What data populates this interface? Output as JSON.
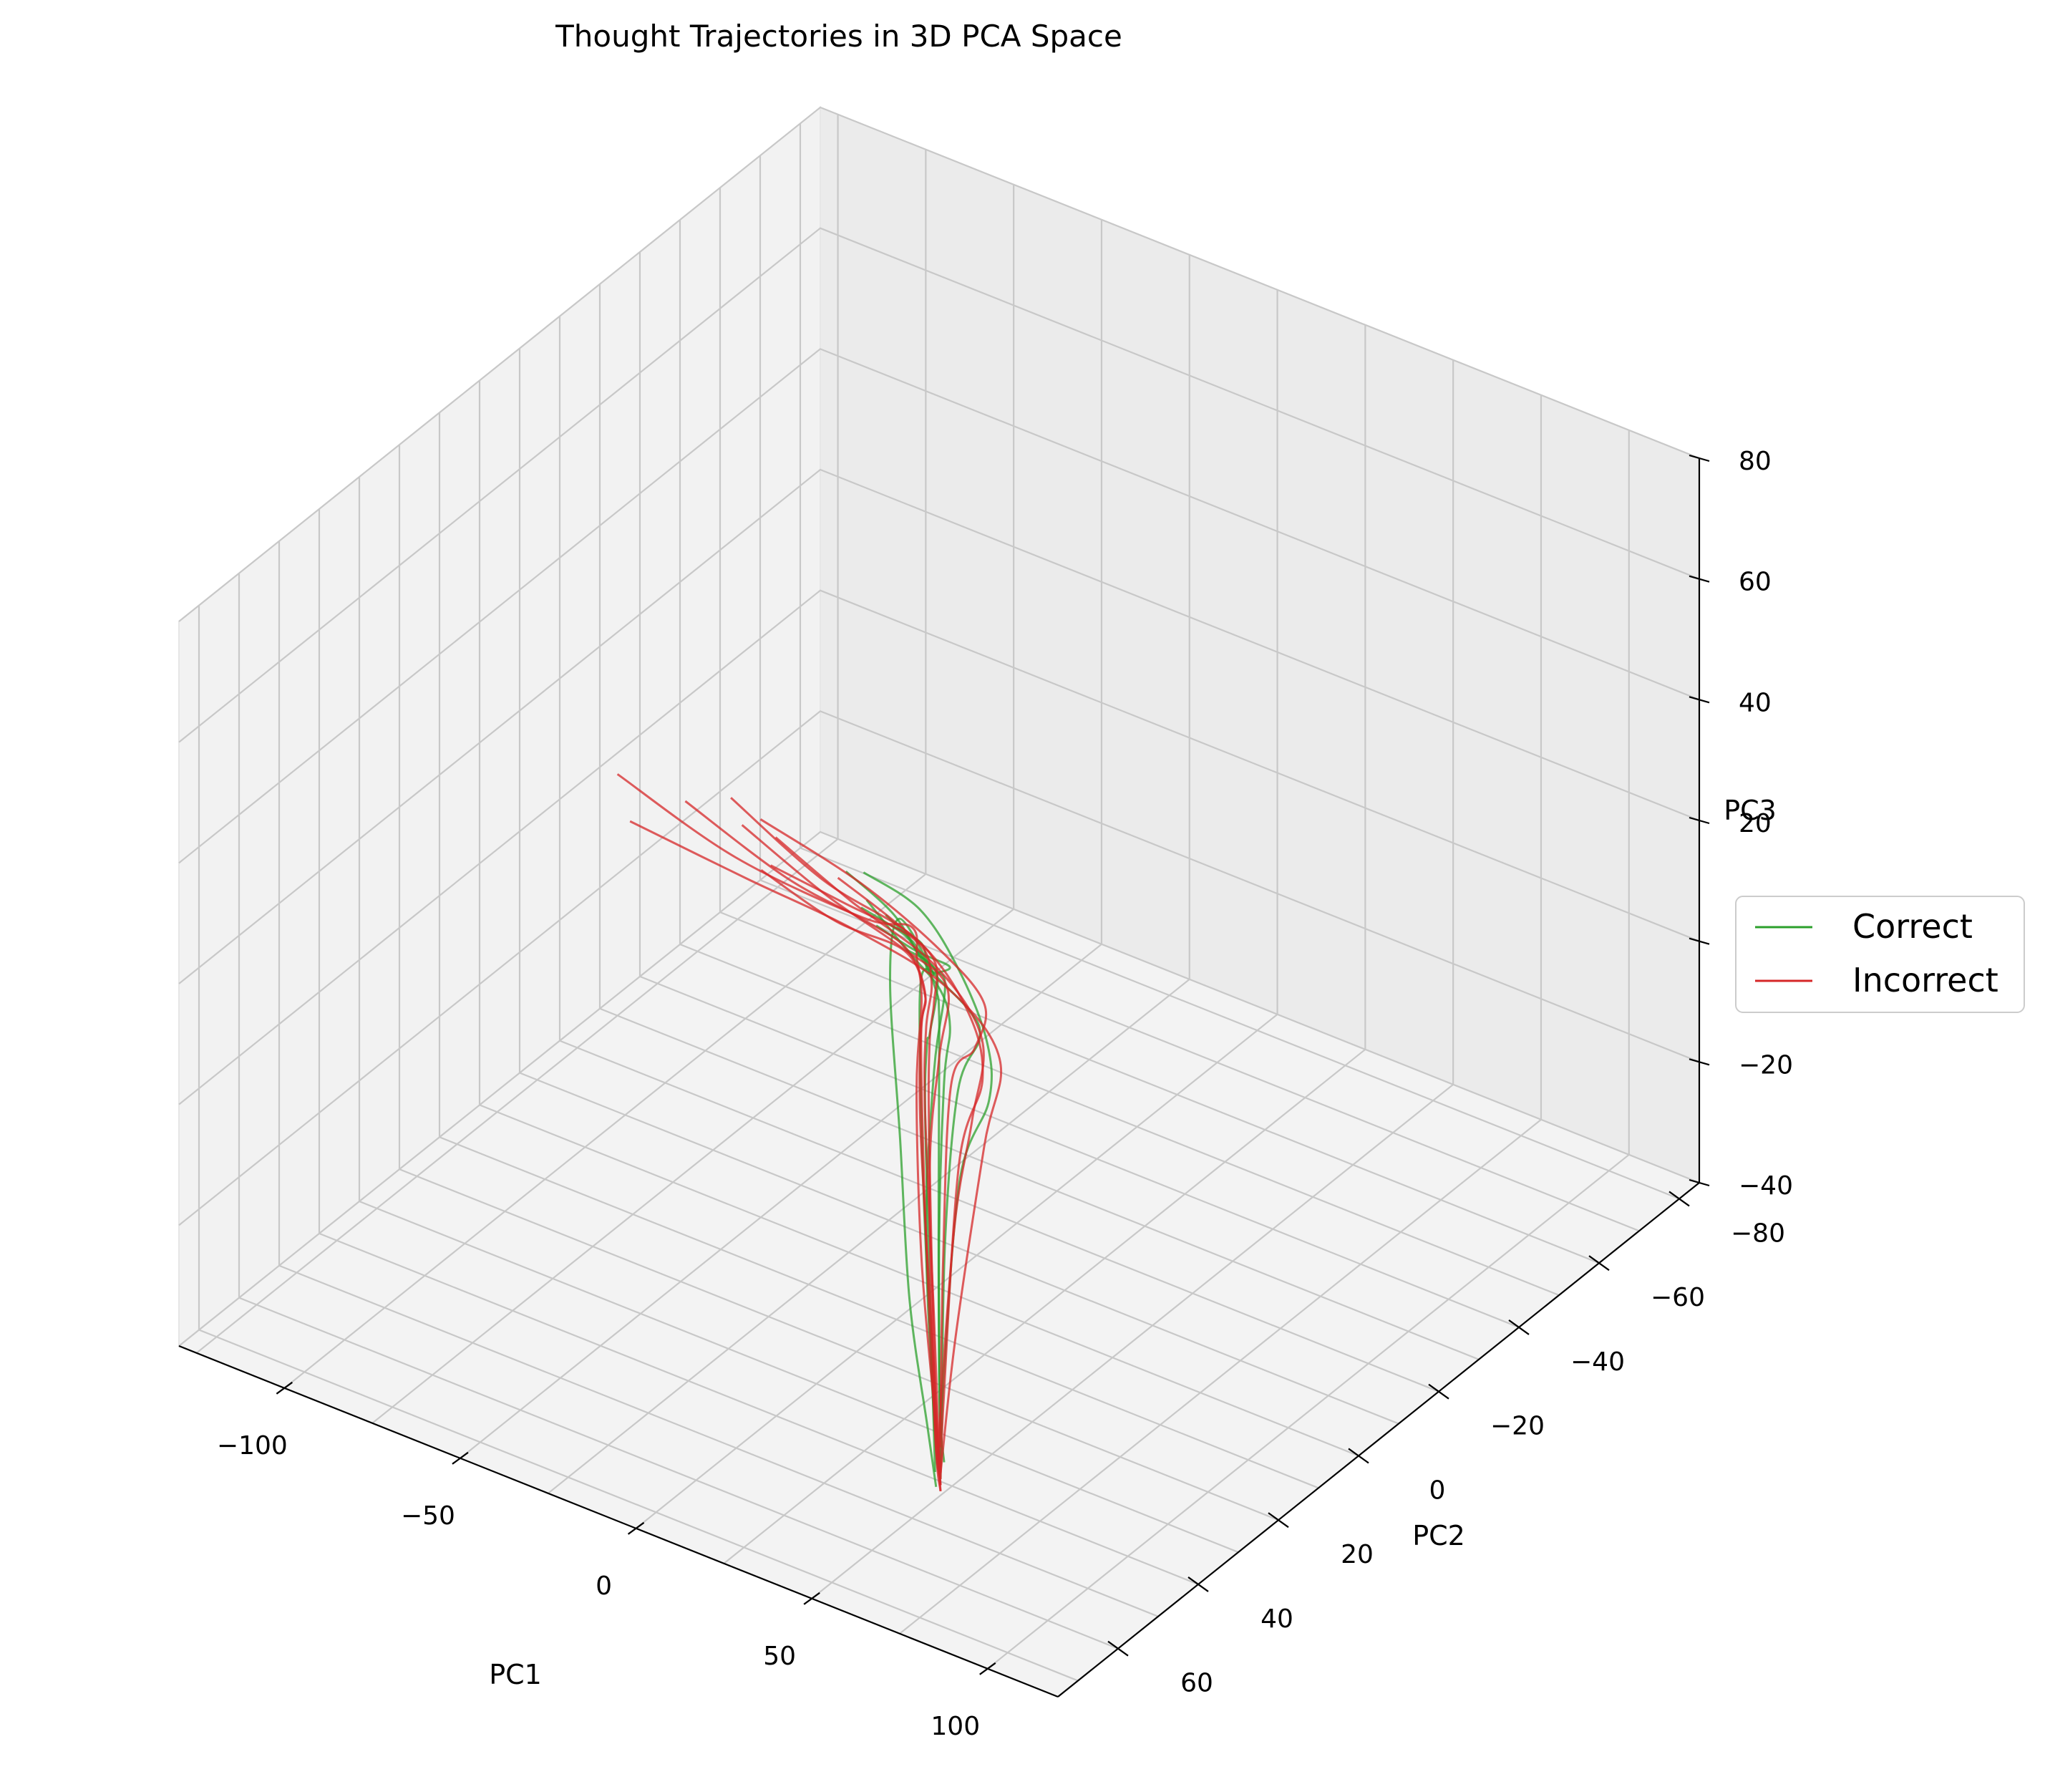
{
  "chart_data": {
    "type": "line",
    "title": "Thought Trajectories in 3D PCA Space",
    "xlabel": "PC1",
    "ylabel": "PC2",
    "zlabel": "PC3",
    "xlim": [
      -130,
      120
    ],
    "ylim": [
      -85,
      75
    ],
    "zlim": [
      -40,
      80
    ],
    "xticks": [
      "−100",
      "−50",
      "0",
      "50",
      "100"
    ],
    "yticks": [
      "−80",
      "−60",
      "−40",
      "−20",
      "0",
      "20",
      "40",
      "60"
    ],
    "zticks": [
      "−40",
      "−20",
      "0",
      "20",
      "40",
      "60",
      "80"
    ],
    "grid": true,
    "legend_position": "right",
    "series": [
      {
        "name": "Correct",
        "color": "#2ca02c",
        "trajectories": [
          [
            [
              -30,
              -15,
              5
            ],
            [
              -10,
              -5,
              12
            ],
            [
              20,
              20,
              28
            ],
            [
              50,
              45,
              48
            ],
            [
              60,
              62,
              68
            ],
            [
              62,
              66,
              60
            ],
            [
              58,
              60,
              30
            ],
            [
              55,
              55,
              0
            ],
            [
              52,
              48,
              -25
            ],
            [
              50,
              44,
              -38
            ]
          ],
          [
            [
              -40,
              -20,
              0
            ],
            [
              -15,
              -8,
              8
            ],
            [
              15,
              10,
              22
            ],
            [
              40,
              35,
              40
            ],
            [
              55,
              52,
              52
            ],
            [
              58,
              55,
              40
            ],
            [
              56,
              52,
              10
            ],
            [
              53,
              47,
              -22
            ],
            [
              51,
              44,
              -36
            ]
          ],
          [
            [
              -50,
              -25,
              -2
            ],
            [
              -30,
              -18,
              2
            ],
            [
              -5,
              0,
              14
            ],
            [
              25,
              22,
              30
            ],
            [
              48,
              40,
              42
            ],
            [
              54,
              48,
              34
            ],
            [
              54,
              50,
              8
            ],
            [
              52,
              46,
              -28
            ],
            [
              50,
              43,
              -37
            ]
          ],
          [
            [
              -35,
              -18,
              4
            ],
            [
              -12,
              -6,
              10
            ],
            [
              18,
              16,
              22
            ],
            [
              44,
              38,
              36
            ],
            [
              52,
              45,
              30
            ],
            [
              53,
              46,
              5
            ],
            [
              51,
              44,
              -24
            ],
            [
              50,
              42,
              -35
            ]
          ],
          [
            [
              -45,
              -22,
              2
            ],
            [
              -20,
              -10,
              6
            ],
            [
              10,
              8,
              16
            ],
            [
              38,
              30,
              28
            ],
            [
              50,
              42,
              28
            ],
            [
              52,
              45,
              4
            ],
            [
              50,
              43,
              -30
            ],
            [
              49,
              42,
              -38
            ]
          ],
          [
            [
              -60,
              -30,
              -1
            ],
            [
              -35,
              -20,
              3
            ],
            [
              -10,
              -6,
              8
            ],
            [
              15,
              5,
              12
            ],
            [
              35,
              20,
              20
            ],
            [
              46,
              35,
              22
            ],
            [
              48,
              40,
              0
            ],
            [
              47,
              40,
              -32
            ]
          ],
          [
            [
              -20,
              -10,
              6
            ],
            [
              0,
              0,
              12
            ],
            [
              30,
              28,
              24
            ],
            [
              52,
              48,
              38
            ],
            [
              56,
              52,
              30
            ],
            [
              55,
              50,
              0
            ],
            [
              52,
              46,
              -34
            ]
          ],
          [
            [
              -55,
              -30,
              0
            ],
            [
              -30,
              -22,
              4
            ],
            [
              -5,
              -10,
              6
            ],
            [
              20,
              5,
              8
            ],
            [
              40,
              22,
              12
            ],
            [
              50,
              38,
              10
            ],
            [
              50,
              42,
              -20
            ],
            [
              49,
              42,
              -36
            ]
          ]
        ]
      },
      {
        "name": "Incorrect",
        "color": "#d62728",
        "trajectories": [
          [
            [
              -125,
              -30,
              0
            ],
            [
              -80,
              -20,
              2
            ],
            [
              -30,
              -8,
              10
            ],
            [
              10,
              15,
              30
            ],
            [
              40,
              40,
              45
            ],
            [
              55,
              52,
              48
            ],
            [
              57,
              55,
              35
            ],
            [
              55,
              52,
              5
            ],
            [
              52,
              46,
              -25
            ],
            [
              49,
              42,
              -40
            ]
          ],
          [
            [
              -100,
              -25,
              4
            ],
            [
              -60,
              -15,
              6
            ],
            [
              -20,
              0,
              16
            ],
            [
              20,
              25,
              34
            ],
            [
              48,
              45,
              44
            ],
            [
              56,
              53,
              42
            ],
            [
              55,
              51,
              10
            ],
            [
              51,
              45,
              -30
            ],
            [
              49,
              42,
              -40
            ]
          ],
          [
            [
              -90,
              -35,
              -2
            ],
            [
              -50,
              -25,
              2
            ],
            [
              -10,
              -10,
              8
            ],
            [
              25,
              10,
              18
            ],
            [
              45,
              30,
              26
            ],
            [
              52,
              42,
              28
            ],
            [
              52,
              44,
              0
            ],
            [
              50,
              43,
              -32
            ]
          ],
          [
            [
              -70,
              -20,
              3
            ],
            [
              -40,
              -12,
              8
            ],
            [
              0,
              5,
              20
            ],
            [
              35,
              32,
              36
            ],
            [
              54,
              50,
              42
            ],
            [
              56,
              52,
              30
            ],
            [
              53,
              47,
              -10
            ],
            [
              50,
              43,
              -38
            ]
          ],
          [
            [
              -80,
              -30,
              0
            ],
            [
              -45,
              -18,
              4
            ],
            [
              -5,
              -4,
              10
            ],
            [
              30,
              15,
              16
            ],
            [
              50,
              35,
              18
            ],
            [
              53,
              42,
              5
            ],
            [
              51,
              44,
              -28
            ],
            [
              49,
              42,
              -39
            ]
          ],
          [
            [
              -110,
              -20,
              1
            ],
            [
              -70,
              -14,
              4
            ],
            [
              -30,
              -6,
              9
            ],
            [
              5,
              2,
              12
            ],
            [
              35,
              15,
              14
            ],
            [
              50,
              32,
              12
            ],
            [
              51,
              40,
              -15
            ],
            [
              49,
              42,
              -37
            ]
          ],
          [
            [
              -60,
              -28,
              -1
            ],
            [
              -30,
              -16,
              5
            ],
            [
              5,
              5,
              18
            ],
            [
              38,
              34,
              34
            ],
            [
              55,
              50,
              40
            ],
            [
              56,
              51,
              25
            ],
            [
              52,
              46,
              -20
            ],
            [
              50,
              43,
              -36
            ]
          ],
          [
            [
              -95,
              -32,
              2
            ],
            [
              -55,
              -20,
              4
            ],
            [
              -15,
              -8,
              10
            ],
            [
              20,
              10,
              16
            ],
            [
              45,
              28,
              20
            ],
            [
              52,
              40,
              14
            ],
            [
              51,
              43,
              -24
            ],
            [
              49,
              42,
              -38
            ]
          ],
          [
            [
              -75,
              -22,
              0
            ],
            [
              -40,
              -10,
              6
            ],
            [
              0,
              8,
              20
            ],
            [
              40,
              38,
              38
            ],
            [
              56,
              53,
              44
            ],
            [
              57,
              54,
              28
            ],
            [
              53,
              47,
              -18
            ],
            [
              50,
              43,
              -38
            ]
          ],
          [
            [
              -85,
              -26,
              3
            ],
            [
              -50,
              -16,
              5
            ],
            [
              -10,
              0,
              14
            ],
            [
              28,
              22,
              28
            ],
            [
              52,
              45,
              34
            ],
            [
              55,
              50,
              18
            ],
            [
              52,
              46,
              -26
            ],
            [
              49,
              42,
              -39
            ]
          ]
        ]
      }
    ]
  }
}
